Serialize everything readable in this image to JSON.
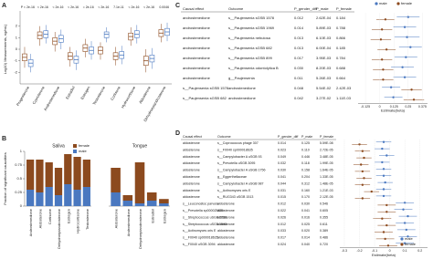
{
  "panel_labels": [
    "A",
    "B",
    "C",
    "D"
  ],
  "chart_data": [
    {
      "type": "box",
      "y_label": "Log10( Measurements, ng/mL)",
      "categories": [
        "Progesterone",
        "Cyproterone",
        "Androstenedione",
        "Estradiol",
        "Estrogen",
        "Testosterone",
        "Cortisone",
        "Hydrocortisone",
        "Aldosterone",
        "Dehydroepiandrosterone"
      ],
      "annotations": [
        "P < 2e-16",
        "< 2e-16",
        "< 2e-16",
        "< 2e-16",
        "= 2e-16",
        "< 2e-16",
        "7.1e-11",
        "< 2e-16",
        "< 2e-16",
        "0.0046"
      ],
      "ylim": [
        -3,
        3
      ],
      "yticks": [
        -2,
        -1,
        0,
        1,
        2
      ],
      "series": [
        {
          "name": "female",
          "color": "#8c4a1e",
          "boxes": [
            [
              -1.6,
              -1.0,
              -0.7,
              -0.4,
              0.2
            ],
            [
              0.3,
              0.9,
              1.2,
              1.5,
              2.0
            ],
            [
              -0.2,
              0.4,
              0.7,
              1.0,
              1.5
            ],
            [
              -1.5,
              -0.9,
              -0.6,
              -0.3,
              0.2
            ],
            [
              -0.7,
              -0.2,
              0.1,
              0.4,
              0.9
            ],
            [
              -0.9,
              -0.4,
              -0.1,
              0.2,
              0.6
            ],
            [
              -1.4,
              -0.9,
              -0.6,
              -0.3,
              0.2
            ],
            [
              0.3,
              0.8,
              1.1,
              1.4,
              1.9
            ],
            [
              -2.0,
              -1.4,
              -1.0,
              -0.6,
              0.0
            ],
            [
              0.6,
              1.1,
              1.4,
              1.7,
              2.2
            ]
          ]
        },
        {
          "name": "male",
          "color": "#4a78c0",
          "boxes": [
            [
              -2.0,
              -1.5,
              -1.2,
              -0.9,
              -0.4
            ],
            [
              0.5,
              1.0,
              1.3,
              1.6,
              2.1
            ],
            [
              0.0,
              0.6,
              0.9,
              1.2,
              1.7
            ],
            [
              -1.8,
              -1.2,
              -0.9,
              -0.6,
              -0.1
            ],
            [
              -0.9,
              -0.4,
              -0.1,
              0.2,
              0.7
            ],
            [
              0.6,
              1.0,
              1.3,
              1.5,
              1.9
            ],
            [
              -1.3,
              -0.8,
              -0.5,
              -0.2,
              0.3
            ],
            [
              0.5,
              1.0,
              1.3,
              1.6,
              2.1
            ],
            [
              -1.7,
              -1.1,
              -0.8,
              -0.5,
              0.1
            ],
            [
              0.7,
              1.2,
              1.5,
              1.8,
              2.3
            ]
          ]
        }
      ]
    },
    {
      "type": "stacked-bar",
      "y_label": "Fraction of significant causalities",
      "ylim": [
        0,
        1
      ],
      "yticks": [
        0,
        0.25,
        0.5,
        0.75,
        1
      ],
      "series": [
        {
          "name": "female",
          "color": "#8c4a1e"
        },
        {
          "name": "male",
          "color": "#4a78c0"
        }
      ],
      "facets": [
        {
          "title": "Saliva",
          "categories": [
            "Androstenedione",
            "Aldosterone",
            "Cortisone",
            "Dehydroepiandrosterone",
            "Estrogen",
            "Hydrocortisone",
            "Testosterone"
          ],
          "values": [
            [
              0.55,
              0.6,
              0.45,
              0.5,
              0.55,
              0.6,
              0.5
            ],
            [
              0.3,
              0.25,
              0.35,
              0.2,
              0.4,
              0.3,
              0.35
            ]
          ]
        },
        {
          "title": "Tongue",
          "categories": [
            "Aldosterone",
            "Androstenedione",
            "Dehydroepiandrosterone",
            "Estradiol",
            "Estrogen"
          ],
          "values": [
            [
              0.45,
              0.1,
              0.75,
              0.15,
              0.08
            ],
            [
              0.25,
              0.1,
              0.05,
              0.1,
              0.05
            ]
          ]
        }
      ]
    },
    {
      "type": "forest",
      "x_label": "Estimate(beta)",
      "columns": [
        "Causal effect",
        "Outcome",
        "P_gender_diff",
        "P_male",
        "P_female"
      ],
      "rows": [
        [
          "androstenedione",
          "s__Paujensenia sGSB 1578",
          "0.012",
          "2.62E-04",
          "0.184"
        ],
        [
          "androstenedione",
          "s__Paujensenia sGSB 1969",
          "0.014",
          "5.89E-03",
          "0.788"
        ],
        [
          "androstenedione",
          "s__Paujensenia nebulosa",
          "0.013",
          "6.10E-03",
          "0.866"
        ],
        [
          "androstenedione",
          "s__Paujensenia sGSB 682",
          "0.013",
          "6.00E-04",
          "0.185"
        ],
        [
          "androstenedione",
          "s__Paujensenia sGSB 899",
          "0.017",
          "3.95E-03",
          "0.784"
        ],
        [
          "androstenedione",
          "s__Paujensenia odontolytica B",
          "0.030",
          "8.20E-03",
          "0.688"
        ],
        [
          "androstenedione",
          "g__Paujensenia",
          "0.011",
          "5.26E-03",
          "0.664"
        ],
        [
          "s__Paujensenia sGSB 1578",
          "androstenedione",
          "0.048",
          "5.54E-02",
          "2.42E-03"
        ],
        [
          "s__Paujensenia sGSB 682",
          "androstenedione",
          "0.042",
          "3.27E-02",
          "1.11E-03"
        ]
      ],
      "xlim": [
        -0.19,
        0.42
      ],
      "xticks": [
        -0.125,
        0,
        0.125,
        0.25,
        0.375
      ],
      "series": [
        {
          "name": "male",
          "color": "#4a78c0",
          "values": [
            0.25,
            0.22,
            0.24,
            0.27,
            0.23,
            0.2,
            0.22,
            0.1,
            0.12
          ],
          "errors": [
            0.1,
            0.1,
            0.11,
            0.1,
            0.1,
            0.1,
            0.1,
            0.08,
            0.08
          ]
        },
        {
          "name": "female",
          "color": "#8c4a1e",
          "values": [
            0.05,
            0.02,
            0.01,
            0.06,
            0.02,
            0.03,
            0.03,
            0.28,
            0.3
          ],
          "errors": [
            0.08,
            0.09,
            0.09,
            0.08,
            0.09,
            0.09,
            0.09,
            0.09,
            0.09
          ]
        }
      ]
    },
    {
      "type": "forest",
      "x_label": "Estimate(beta)",
      "columns": [
        "Causal effect",
        "Outcome",
        "P_gender_diff",
        "P_male",
        "P_female"
      ],
      "rows": [
        [
          "aldosterone",
          "s__Coprococcus phage 307",
          "0.014",
          "0.125",
          "5.59E-08"
        ],
        [
          "aldosterone",
          "s__F0040 sp000018635",
          "0.023",
          "0.110",
          "2.72E-05"
        ],
        [
          "aldosterone",
          "s__Campylobacter A uSGB 93",
          "0.049",
          "0.446",
          "3.48E-05"
        ],
        [
          "aldosterone",
          "s__Prevotella uSGB 3095",
          "0.032",
          "0.118",
          "1.99E-05"
        ],
        [
          "aldosterone",
          "s__Campylobacter A uSGB 1756",
          "0.030",
          "0.158",
          "1.64E-05"
        ],
        [
          "aldosterone",
          "g__Eggerthellaceae",
          "0.041",
          "0.204",
          "1.33E-05"
        ],
        [
          "aldosterone",
          "s__Campylobacter A uSGB 987",
          "0.044",
          "0.312",
          "1.48E-05"
        ],
        [
          "aldosterone",
          "s__Actinomyces oris E",
          "0.031",
          "0.160",
          "1.21E-03"
        ],
        [
          "aldosterone",
          "s__RUG343 uSGB 1513",
          "0.015",
          "0.170",
          "2.12E-05"
        ],
        [
          "s__Leuconostoc parvula",
          "aldosterone",
          "0.012",
          "0.030",
          "0.546"
        ],
        [
          "s__Prevotella sp000025825",
          "aldosterone",
          "0.022",
          "0.041",
          "0.605"
        ],
        [
          "s__Streptococcus uSGB 2756",
          "aldosterone",
          "0.026",
          "0.016",
          "0.355"
        ],
        [
          "s__Streptococcus uSGB 1995",
          "aldosterone",
          "0.012",
          "0.025",
          "0.611"
        ],
        [
          "s__Actinomyces oris E",
          "aldosterone",
          "0.033",
          "0.020",
          "0.389"
        ],
        [
          "s__F0040 sp000018635",
          "aldosterone",
          "0.017",
          "0.014",
          "0.486"
        ],
        [
          "s__F0040 uSGB 3094",
          "aldosterone",
          "0.024",
          "0.040",
          "0.720"
        ]
      ],
      "xlim": [
        -0.33,
        0.25
      ],
      "xticks": [
        -0.3,
        -0.2,
        -0.1,
        0,
        0.1,
        0.2
      ],
      "series": [
        {
          "name": "male",
          "color": "#4a78c0",
          "values": [
            -0.04,
            -0.05,
            -0.02,
            -0.05,
            -0.04,
            -0.04,
            -0.03,
            -0.04,
            -0.04,
            0.1,
            0.09,
            0.12,
            0.1,
            0.11,
            0.12,
            0.1
          ],
          "errors": [
            0.05,
            0.05,
            0.05,
            0.05,
            0.05,
            0.05,
            0.05,
            0.05,
            0.05,
            0.06,
            0.06,
            0.06,
            0.06,
            0.06,
            0.06,
            0.06
          ]
        },
        {
          "name": "female",
          "color": "#8c4a1e",
          "values": [
            -0.2,
            -0.18,
            -0.17,
            -0.19,
            -0.18,
            -0.17,
            -0.18,
            -0.12,
            -0.18,
            -0.02,
            -0.02,
            -0.05,
            -0.02,
            -0.04,
            -0.03,
            -0.01
          ],
          "errors": [
            0.05,
            0.05,
            0.05,
            0.05,
            0.05,
            0.05,
            0.05,
            0.05,
            0.05,
            0.06,
            0.06,
            0.06,
            0.06,
            0.06,
            0.06,
            0.06
          ]
        }
      ]
    }
  ]
}
